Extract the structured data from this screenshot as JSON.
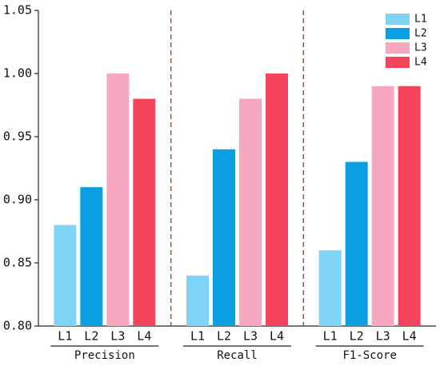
{
  "chart_data": {
    "type": "bar",
    "categories": [
      "Precision",
      "Recall",
      "F1-Score"
    ],
    "series": [
      {
        "name": "L1",
        "color": "#7fd3f5",
        "values": [
          0.88,
          0.84,
          0.86
        ]
      },
      {
        "name": "L2",
        "color": "#0a9fe0",
        "values": [
          0.91,
          0.94,
          0.93
        ]
      },
      {
        "name": "L3",
        "color": "#f7a8c0",
        "values": [
          1.0,
          0.98,
          0.99
        ]
      },
      {
        "name": "L4",
        "color": "#f5455c",
        "values": [
          0.98,
          1.0,
          0.99
        ]
      }
    ],
    "ylim": [
      0.8,
      1.05
    ],
    "yticks": [
      {
        "value": 0.8,
        "label": "0.80"
      },
      0.85,
      {
        "value": 0.9,
        "label": "0.90"
      },
      0.95,
      {
        "value": 1.0,
        "label": "1.00"
      },
      1.05
    ],
    "legend": "upper right",
    "group_separator_color": "#a0522d"
  }
}
